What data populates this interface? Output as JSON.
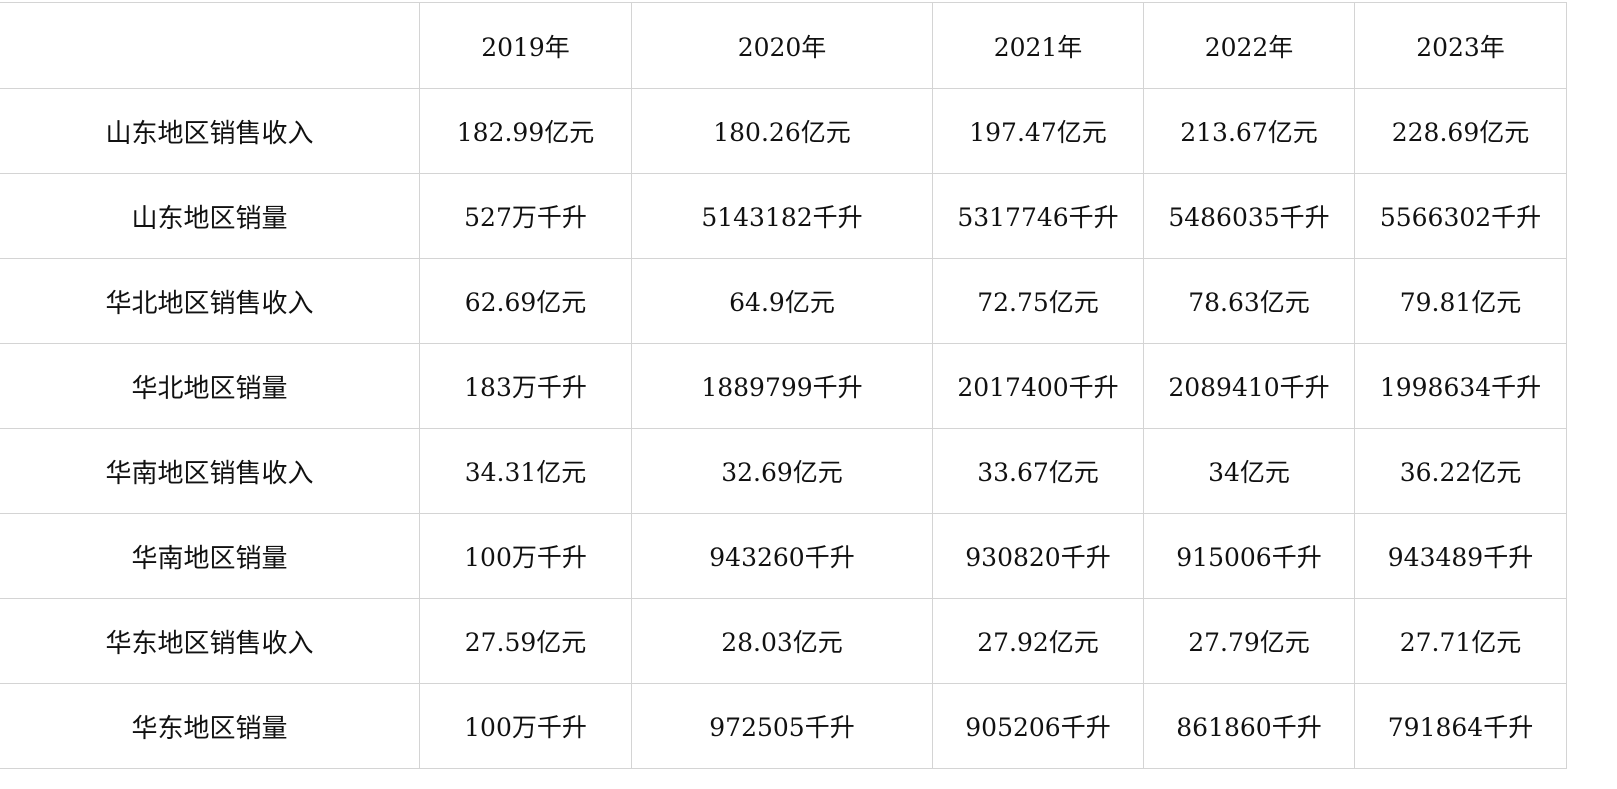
{
  "table": {
    "headers": [
      "",
      "2019年",
      "2020年",
      "2021年",
      "2022年",
      "2023年"
    ],
    "rows": [
      {
        "label": "山东地区销售收入",
        "values": [
          "182.99亿元",
          "180.26亿元",
          "197.47亿元",
          "213.67亿元",
          "228.69亿元"
        ]
      },
      {
        "label": "山东地区销量",
        "values": [
          "527万千升",
          "5143182千升",
          "5317746千升",
          "5486035千升",
          "5566302千升"
        ]
      },
      {
        "label": "华北地区销售收入",
        "values": [
          "62.69亿元",
          "64.9亿元",
          "72.75亿元",
          "78.63亿元",
          "79.81亿元"
        ]
      },
      {
        "label": "华北地区销量",
        "values": [
          "183万千升",
          "1889799千升",
          "2017400千升",
          "2089410千升",
          "1998634千升"
        ]
      },
      {
        "label": "华南地区销售收入",
        "values": [
          "34.31亿元",
          "32.69亿元",
          "33.67亿元",
          "34亿元",
          "36.22亿元"
        ]
      },
      {
        "label": "华南地区销量",
        "values": [
          "100万千升",
          "943260千升",
          "930820千升",
          "915006千升",
          "943489千升"
        ]
      },
      {
        "label": "华东地区销售收入",
        "values": [
          "27.59亿元",
          "28.03亿元",
          "27.92亿元",
          "27.79亿元",
          "27.71亿元"
        ]
      },
      {
        "label": "华东地区销量",
        "values": [
          "100万千升",
          "972505千升",
          "905206千升",
          "861860千升",
          "791864千升"
        ]
      }
    ]
  }
}
